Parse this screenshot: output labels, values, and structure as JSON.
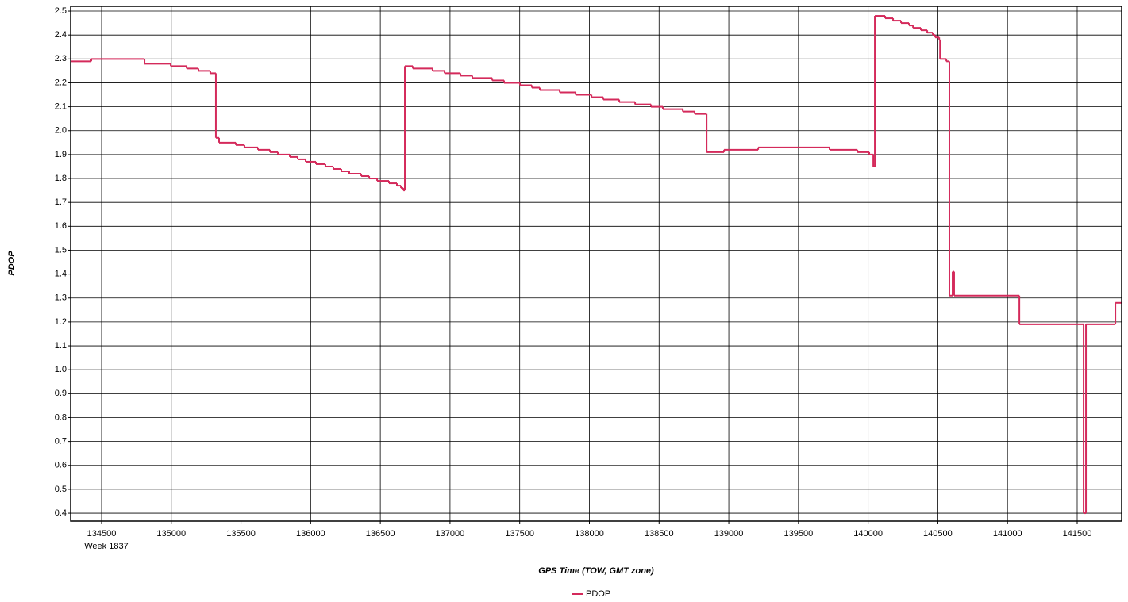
{
  "chart_data": {
    "type": "line",
    "step": "post",
    "x_label": "GPS Time (TOW, GMT zone)",
    "y_label": "PDOP",
    "x_sublabel": "Week 1837",
    "xlim": [
      134278,
      141819
    ],
    "xticks": [
      134500,
      135000,
      135500,
      136000,
      136500,
      137000,
      137500,
      138000,
      138500,
      139000,
      139500,
      140000,
      140500,
      141000,
      141500
    ],
    "ylim": [
      0.367,
      2.52
    ],
    "yticks": [
      0.4,
      0.5,
      0.6,
      0.7,
      0.8,
      0.9,
      {
        "value": 1,
        "label": "1.0"
      },
      1.1,
      1.2,
      1.3,
      1.4,
      1.5,
      1.6,
      1.7,
      1.8,
      1.9,
      {
        "value": 2,
        "label": "2.0"
      },
      2.1,
      2.2,
      2.3,
      2.4,
      2.5
    ],
    "grid": true,
    "legend": "bottom",
    "x": [
      134278,
      134426,
      134808,
      134996,
      135110,
      135195,
      135280,
      135320,
      135343,
      135463,
      135525,
      135622,
      135708,
      135765,
      135850,
      135907,
      135964,
      136038,
      136106,
      136163,
      136220,
      136277,
      136363,
      136420,
      136477,
      136562,
      136619,
      136648,
      136665,
      136676,
      136733,
      136875,
      136961,
      137075,
      137160,
      137303,
      137388,
      137502,
      137587,
      137644,
      137787,
      137901,
      138015,
      138100,
      138214,
      138328,
      138442,
      138527,
      138670,
      138755,
      138841,
      138966,
      139211,
      139723,
      139923,
      140008,
      140037,
      140048,
      140122,
      140179,
      140236,
      140293,
      140322,
      140378,
      140424,
      140464,
      140481,
      140510,
      140516,
      140561,
      140583,
      140606,
      140617,
      141085,
      141546,
      141563,
      141774,
      141819
    ],
    "series": [
      {
        "name": "PDOP",
        "color": "#d42a5b",
        "values": [
          2.29,
          2.3,
          2.28,
          2.27,
          2.26,
          2.25,
          2.24,
          1.97,
          1.95,
          1.94,
          1.93,
          1.92,
          1.91,
          1.9,
          1.89,
          1.88,
          1.87,
          1.86,
          1.85,
          1.84,
          1.83,
          1.82,
          1.81,
          1.8,
          1.79,
          1.78,
          1.77,
          1.76,
          1.75,
          2.27,
          2.26,
          2.25,
          2.24,
          2.23,
          2.22,
          2.21,
          2.2,
          2.19,
          2.18,
          2.17,
          2.16,
          2.15,
          2.14,
          2.13,
          2.12,
          2.11,
          2.1,
          2.09,
          2.08,
          2.07,
          1.91,
          1.92,
          1.93,
          1.92,
          1.91,
          1.9,
          1.85,
          2.48,
          2.47,
          2.46,
          2.45,
          2.44,
          2.43,
          2.42,
          2.41,
          2.4,
          2.39,
          2.38,
          2.3,
          2.29,
          1.31,
          1.41,
          1.31,
          1.19,
          0.4,
          1.19,
          1.28,
          1.28
        ]
      }
    ]
  }
}
